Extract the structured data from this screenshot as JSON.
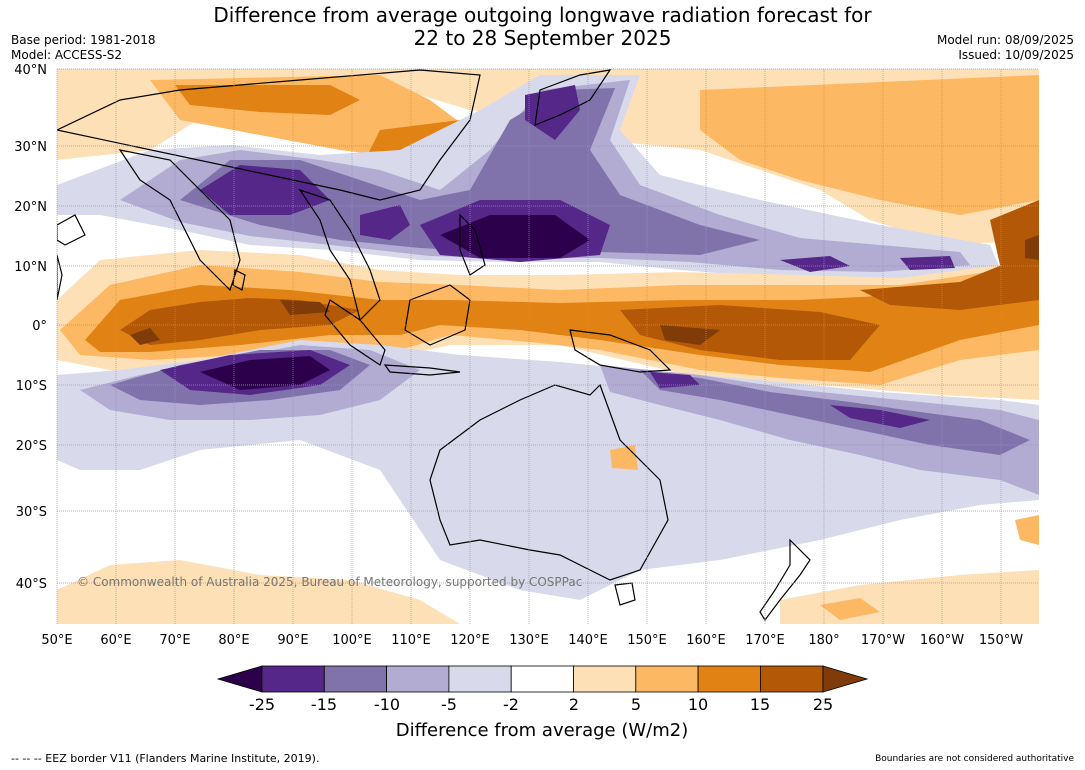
{
  "title_line1": "Difference from average outgoing longwave radiation forecast for",
  "title_line2": "22 to 28 September 2025",
  "base_period": "Base period: 1981-2018",
  "model": "Model: ACCESS-S2",
  "model_run": "Model run: 08/09/2025",
  "issued": "Issued: 10/09/2025",
  "lat_labels": [
    "40°N",
    "30°N",
    "20°N",
    "10°N",
    "0°",
    "10°S",
    "20°S",
    "30°S",
    "40°S"
  ],
  "lon_labels": [
    "50°E",
    "60°E",
    "70°E",
    "80°E",
    "90°E",
    "100°E",
    "110°E",
    "120°E",
    "130°E",
    "140°E",
    "150°E",
    "160°E",
    "170°E",
    "180°",
    "170°W",
    "160°W",
    "150°W"
  ],
  "copyright": "© Commonwealth of Australia 2025, Bureau of Meteorology, supported by COSPPac",
  "colorbar": {
    "ticks": [
      "-25",
      "-15",
      "-10",
      "-5",
      "-2",
      "2",
      "5",
      "10",
      "15",
      "25"
    ],
    "colors": [
      "#2d004b",
      "#542788",
      "#8073ac",
      "#b2abd2",
      "#d8daeb",
      "#ffffff",
      "#fee0b6",
      "#fdb863",
      "#e08214",
      "#b35806",
      "#7f3b08"
    ],
    "title": "Difference from average (W/m2)"
  },
  "footer_left": "--  --  -- EEZ border V11 (Flanders Marine Institute, 2019).",
  "footer_right": "Boundaries are not considered authoritative"
}
